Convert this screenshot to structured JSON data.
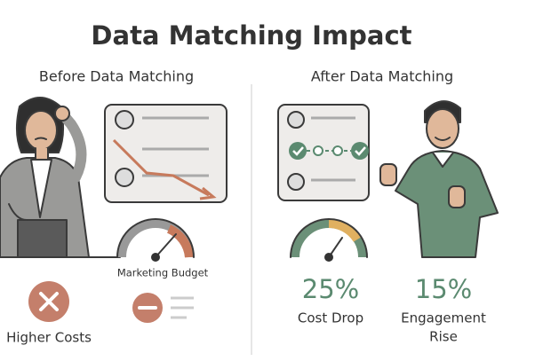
{
  "title": "Data Matching Impact",
  "before": {
    "heading": "Before Data Matching",
    "gauge_label": "Marketing Budget",
    "outcome": "Higher Costs"
  },
  "after": {
    "heading": "After Data Matching",
    "stats": [
      {
        "value": "25%",
        "label_lines": [
          "Cost Drop"
        ]
      },
      {
        "value": "15%",
        "label_lines": [
          "Engagement",
          "Rise"
        ]
      }
    ]
  }
}
